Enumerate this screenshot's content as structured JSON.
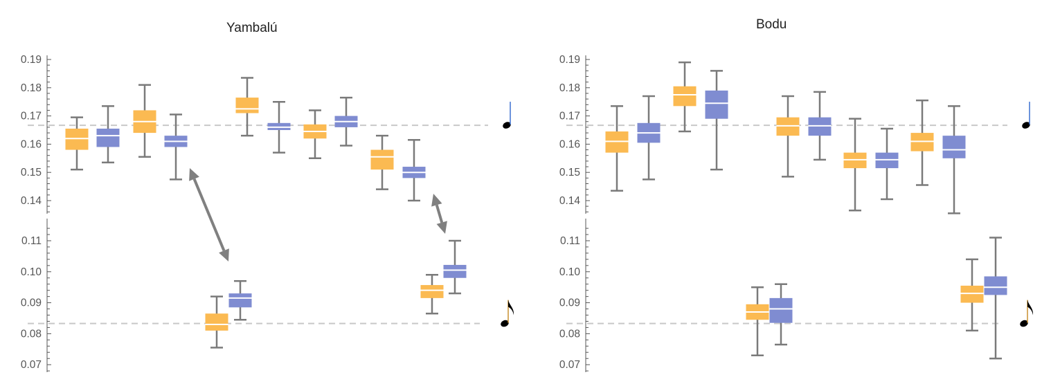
{
  "chart_data": [
    {
      "type": "box",
      "title": "Yambalú",
      "colors": {
        "a": "#FBBA52",
        "b": "#7F8CD1",
        "whisker": "#7A7A7A",
        "reference": "#C8C8C8"
      },
      "yticks_upper": [
        "0.14",
        "0.15",
        "0.16",
        "0.17",
        "0.18",
        "0.19"
      ],
      "yticks_lower": [
        "0.07",
        "0.08",
        "0.09",
        "0.10",
        "0.11"
      ],
      "ylim_upper": [
        0.135,
        0.19
      ],
      "ylim_lower": [
        0.068,
        0.114
      ],
      "reference_lines": [
        {
          "value": 0.1667,
          "symbol": "quarter-note"
        },
        {
          "value": 0.0833,
          "symbol": "eighth-note"
        }
      ],
      "boxes_upper": [
        {
          "series": "a",
          "max": 0.1695,
          "q3": 0.1655,
          "median": 0.162,
          "q1": 0.158,
          "min": 0.151
        },
        {
          "series": "b",
          "max": 0.1735,
          "q3": 0.1655,
          "median": 0.163,
          "q1": 0.159,
          "min": 0.1535
        },
        {
          "series": "a",
          "max": 0.181,
          "q3": 0.172,
          "median": 0.168,
          "q1": 0.164,
          "min": 0.1555
        },
        {
          "series": "b",
          "max": 0.1705,
          "q3": 0.163,
          "median": 0.161,
          "q1": 0.159,
          "min": 0.1475
        },
        {
          "series": "a",
          "max": 0.1835,
          "q3": 0.1765,
          "median": 0.1725,
          "q1": 0.171,
          "min": 0.163
        },
        {
          "series": "b",
          "max": 0.175,
          "q3": 0.1675,
          "median": 0.166,
          "q1": 0.165,
          "min": 0.157
        },
        {
          "series": "a",
          "max": 0.172,
          "q3": 0.167,
          "median": 0.1645,
          "q1": 0.162,
          "min": 0.155
        },
        {
          "series": "b",
          "max": 0.1765,
          "q3": 0.17,
          "median": 0.168,
          "q1": 0.166,
          "min": 0.1595
        },
        {
          "series": "a",
          "max": 0.163,
          "q3": 0.158,
          "median": 0.1555,
          "q1": 0.151,
          "min": 0.144
        },
        {
          "series": "b",
          "max": 0.1615,
          "q3": 0.152,
          "median": 0.15,
          "q1": 0.148,
          "min": 0.14
        }
      ],
      "boxes_lower": [
        {
          "series": "a",
          "max": 0.092,
          "q3": 0.0865,
          "median": 0.083,
          "q1": 0.081,
          "min": 0.0755
        },
        {
          "series": "b",
          "max": 0.097,
          "q3": 0.093,
          "median": 0.0915,
          "q1": 0.0885,
          "min": 0.0845
        },
        {
          "series": "a",
          "max": 0.099,
          "q3": 0.0957,
          "median": 0.094,
          "q1": 0.0915,
          "min": 0.0865
        },
        {
          "series": "b",
          "max": 0.11,
          "q3": 0.1022,
          "median": 0.1005,
          "q1": 0.098,
          "min": 0.093
        }
      ],
      "annotations": [
        "double-arrow",
        "double-arrow"
      ]
    },
    {
      "type": "box",
      "title": "Bodu",
      "colors": {
        "a": "#FBBA52",
        "b": "#7F8CD1",
        "whisker": "#7A7A7A",
        "reference": "#C8C8C8"
      },
      "yticks_upper": [
        "0.14",
        "0.15",
        "0.16",
        "0.17",
        "0.18",
        "0.19"
      ],
      "yticks_lower": [
        "0.07",
        "0.08",
        "0.09",
        "0.10",
        "0.11"
      ],
      "ylim_upper": [
        0.135,
        0.19
      ],
      "ylim_lower": [
        0.068,
        0.114
      ],
      "reference_lines": [
        {
          "value": 0.1667,
          "symbol": "quarter-note"
        },
        {
          "value": 0.0833,
          "symbol": "eighth-note"
        }
      ],
      "boxes_upper": [
        {
          "series": "a",
          "max": 0.1735,
          "q3": 0.1645,
          "median": 0.161,
          "q1": 0.157,
          "min": 0.1435
        },
        {
          "series": "b",
          "max": 0.177,
          "q3": 0.1675,
          "median": 0.164,
          "q1": 0.1605,
          "min": 0.1475
        },
        {
          "series": "a",
          "max": 0.189,
          "q3": 0.1805,
          "median": 0.1775,
          "q1": 0.1735,
          "min": 0.1645
        },
        {
          "series": "b",
          "max": 0.186,
          "q3": 0.179,
          "median": 0.1745,
          "q1": 0.169,
          "min": 0.151
        },
        {
          "series": "a",
          "max": 0.177,
          "q3": 0.1695,
          "median": 0.1665,
          "q1": 0.163,
          "min": 0.1485
        },
        {
          "series": "b",
          "max": 0.1785,
          "q3": 0.1695,
          "median": 0.1665,
          "q1": 0.163,
          "min": 0.1545
        },
        {
          "series": "a",
          "max": 0.169,
          "q3": 0.157,
          "median": 0.1545,
          "q1": 0.1515,
          "min": 0.1365
        },
        {
          "series": "b",
          "max": 0.1655,
          "q3": 0.157,
          "median": 0.1545,
          "q1": 0.1515,
          "min": 0.1405
        },
        {
          "series": "a",
          "max": 0.1755,
          "q3": 0.164,
          "median": 0.161,
          "q1": 0.1575,
          "min": 0.1455
        },
        {
          "series": "b",
          "max": 0.1735,
          "q3": 0.163,
          "median": 0.158,
          "q1": 0.155,
          "min": 0.1355
        }
      ],
      "boxes_lower": [
        {
          "series": "a",
          "max": 0.095,
          "q3": 0.0895,
          "median": 0.087,
          "q1": 0.0845,
          "min": 0.073
        },
        {
          "series": "b",
          "max": 0.096,
          "q3": 0.0915,
          "median": 0.088,
          "q1": 0.0835,
          "min": 0.0765
        },
        {
          "series": "a",
          "max": 0.104,
          "q3": 0.0955,
          "median": 0.093,
          "q1": 0.09,
          "min": 0.081
        },
        {
          "series": "b",
          "max": 0.111,
          "q3": 0.0985,
          "median": 0.095,
          "q1": 0.0925,
          "min": 0.072
        }
      ],
      "annotations": []
    }
  ]
}
